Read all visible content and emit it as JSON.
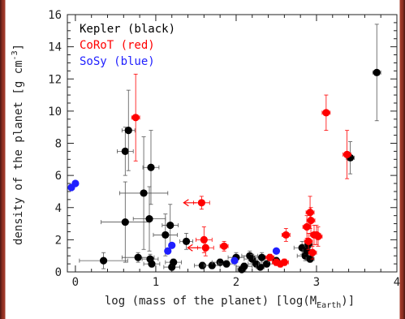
{
  "chart_data": {
    "type": "scatter",
    "xlabel": "log (mass of the planet) [log(M",
    "xlabel_sub": "Earth",
    "xlabel_end": ")]",
    "ylabel": "density of the planet  [g cm",
    "ylabel_sup": "-3",
    "ylabel_end": "]",
    "xlim": [
      -0.1,
      4.0
    ],
    "ylim": [
      0,
      16
    ],
    "x_ticks": [
      0,
      1,
      2,
      3,
      4
    ],
    "y_ticks": [
      0,
      2,
      4,
      6,
      8,
      10,
      12,
      14,
      16
    ],
    "grid": false,
    "legend_position": "top-left",
    "legend": [
      {
        "label": "Kepler (black)",
        "color": "#000000"
      },
      {
        "label": "CoRoT (red)",
        "color": "#ff0000"
      },
      {
        "label": "SoSy (blue)",
        "color": "#1f1fff"
      }
    ],
    "series": [
      {
        "name": "Kepler (black)",
        "color": "#000000",
        "points": [
          {
            "x": 0.35,
            "y": 0.7,
            "xerr": 0.3,
            "yerr": 0.5
          },
          {
            "x": 0.62,
            "y": 3.1,
            "xerr": 0.3,
            "yerr": 2.5
          },
          {
            "x": 0.62,
            "y": 7.5,
            "xerr": 0.1,
            "yerr": 1.5
          },
          {
            "x": 0.66,
            "y": 8.8,
            "xerr": 0.08,
            "yerr": 2.5
          },
          {
            "x": 0.78,
            "y": 0.9,
            "xerr": 0.2,
            "yerr": 0.3
          },
          {
            "x": 0.85,
            "y": 4.9,
            "xerr": 0.3,
            "yerr": 3.5
          },
          {
            "x": 0.92,
            "y": 3.3,
            "xerr": 0.2,
            "yerr": 2.0
          },
          {
            "x": 0.94,
            "y": 6.5,
            "xerr": 0.1,
            "yerr": 2.3
          },
          {
            "x": 0.93,
            "y": 0.8,
            "xerr": 0.1,
            "yerr": 0.3
          },
          {
            "x": 0.95,
            "y": 0.5,
            "xerr": 0.1,
            "yerr": 0.2
          },
          {
            "x": 1.12,
            "y": 2.3,
            "xerr": 0.15,
            "yerr": 1.3
          },
          {
            "x": 1.18,
            "y": 2.9,
            "xerr": 0.1,
            "yerr": 1.3
          },
          {
            "x": 1.2,
            "y": 0.3,
            "xerr": 0.1,
            "yerr": 0.2
          },
          {
            "x": 1.22,
            "y": 0.6,
            "xerr": 0.1,
            "yerr": 0.2
          },
          {
            "x": 1.38,
            "y": 1.9,
            "xerr": 0.08,
            "yerr": 0.5
          },
          {
            "x": 1.58,
            "y": 0.4,
            "xerr": 0.1,
            "yerr": 0.2
          },
          {
            "x": 1.7,
            "y": 0.4,
            "xerr": 0.1,
            "yerr": 0.2
          },
          {
            "x": 1.8,
            "y": 0.6,
            "xerr": 0.1,
            "yerr": 0.2
          },
          {
            "x": 1.88,
            "y": 0.5,
            "xerr": 0.1,
            "yerr": 0.2
          },
          {
            "x": 2.0,
            "y": 0.9,
            "xerr": 0.1,
            "yerr": 0.3
          },
          {
            "x": 2.07,
            "y": 0.15,
            "xerr": 0.05,
            "yerr": 0.1
          },
          {
            "x": 2.1,
            "y": 0.35,
            "xerr": 0.1,
            "yerr": 0.2
          },
          {
            "x": 2.17,
            "y": 1.0,
            "xerr": 0.1,
            "yerr": 0.3
          },
          {
            "x": 2.2,
            "y": 0.8,
            "xerr": 0.1,
            "yerr": 0.3
          },
          {
            "x": 2.25,
            "y": 0.5,
            "xerr": 0.1,
            "yerr": 0.2
          },
          {
            "x": 2.3,
            "y": 0.3,
            "xerr": 0.05,
            "yerr": 0.15
          },
          {
            "x": 2.32,
            "y": 0.9,
            "xerr": 0.1,
            "yerr": 0.3
          },
          {
            "x": 2.38,
            "y": 0.5,
            "xerr": 0.1,
            "yerr": 0.2
          },
          {
            "x": 2.5,
            "y": 0.7,
            "xerr": 0.1,
            "yerr": 0.2
          },
          {
            "x": 2.82,
            "y": 1.5,
            "xerr": 0.1,
            "yerr": 0.4
          },
          {
            "x": 2.86,
            "y": 1.0,
            "xerr": 0.1,
            "yerr": 0.3
          },
          {
            "x": 2.88,
            "y": 1.3,
            "xerr": 0.05,
            "yerr": 0.2
          },
          {
            "x": 2.9,
            "y": 1.7,
            "xerr": 0.05,
            "yerr": 0.2
          },
          {
            "x": 2.92,
            "y": 0.8,
            "xerr": 0.05,
            "yerr": 0.2
          },
          {
            "x": 3.42,
            "y": 7.1,
            "xerr": 0.05,
            "yerr": 1.0
          },
          {
            "x": 3.75,
            "y": 12.4,
            "xerr": 0.05,
            "yerr": 3.0
          }
        ]
      },
      {
        "name": "CoRoT (red)",
        "color": "#ff0000",
        "points": [
          {
            "x": 0.75,
            "y": 9.6,
            "xerr": 0.05,
            "yerr": 2.7
          },
          {
            "x": 1.57,
            "y": 4.3,
            "xerr": 0.1,
            "yerr": 0.4,
            "upper_limit": true
          },
          {
            "x": 1.6,
            "y": 2.0,
            "xerr": 0.1,
            "yerr": 0.8
          },
          {
            "x": 1.62,
            "y": 1.5,
            "xerr": 0.1,
            "yerr": 0.5,
            "upper_limit": true
          },
          {
            "x": 1.85,
            "y": 1.6,
            "xerr": 0.05,
            "yerr": 0.3
          },
          {
            "x": 2.42,
            "y": 0.9,
            "xerr": 0.05,
            "yerr": 0.2
          },
          {
            "x": 2.5,
            "y": 0.6,
            "xerr": 0.05,
            "yerr": 0.2
          },
          {
            "x": 2.55,
            "y": 0.5,
            "xerr": 0.05,
            "yerr": 0.2
          },
          {
            "x": 2.6,
            "y": 0.6,
            "xerr": 0.05,
            "yerr": 0.2
          },
          {
            "x": 2.62,
            "y": 2.3,
            "xerr": 0.05,
            "yerr": 0.4
          },
          {
            "x": 2.88,
            "y": 2.8,
            "xerr": 0.05,
            "yerr": 0.7
          },
          {
            "x": 2.9,
            "y": 1.9,
            "xerr": 0.05,
            "yerr": 0.5
          },
          {
            "x": 2.92,
            "y": 3.7,
            "xerr": 0.05,
            "yerr": 1.0
          },
          {
            "x": 2.93,
            "y": 3.2,
            "xerr": 0.05,
            "yerr": 0.8
          },
          {
            "x": 2.95,
            "y": 1.2,
            "xerr": 0.05,
            "yerr": 0.4
          },
          {
            "x": 2.97,
            "y": 2.3,
            "xerr": 0.05,
            "yerr": 0.6
          },
          {
            "x": 3.0,
            "y": 2.3,
            "xerr": 0.05,
            "yerr": 0.6
          },
          {
            "x": 3.02,
            "y": 2.2,
            "xerr": 0.05,
            "yerr": 0.6
          },
          {
            "x": 3.12,
            "y": 9.9,
            "xerr": 0.05,
            "yerr": 1.1
          },
          {
            "x": 3.38,
            "y": 7.3,
            "xerr": 0.05,
            "yerr": 1.5
          }
        ]
      },
      {
        "name": "SoSy (blue)",
        "color": "#1f1fff",
        "points": [
          {
            "x": -0.05,
            "y": 5.25
          },
          {
            "x": 0.0,
            "y": 5.5
          },
          {
            "x": 1.15,
            "y": 1.3
          },
          {
            "x": 1.2,
            "y": 1.65
          },
          {
            "x": 1.98,
            "y": 0.7
          },
          {
            "x": 2.5,
            "y": 1.3
          }
        ]
      }
    ]
  }
}
